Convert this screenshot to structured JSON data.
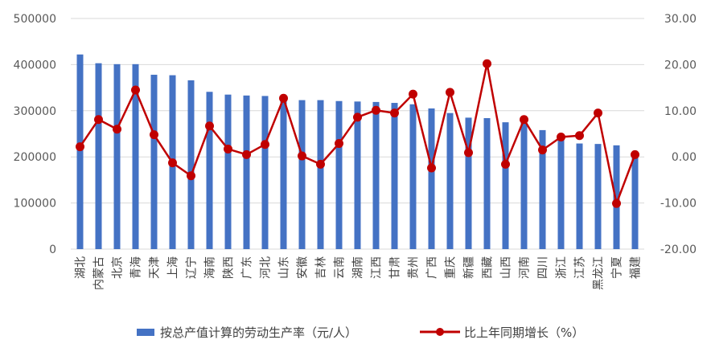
{
  "chart_data": {
    "type": "bar+line",
    "categories": [
      "湖北",
      "内蒙古",
      "北京",
      "青海",
      "天津",
      "上海",
      "辽宁",
      "海南",
      "陕西",
      "广东",
      "河北",
      "山东",
      "安徽",
      "吉林",
      "云南",
      "湖南",
      "江西",
      "甘肃",
      "贵州",
      "广西",
      "重庆",
      "新疆",
      "西藏",
      "山西",
      "河南",
      "四川",
      "浙江",
      "江苏",
      "黑龙江",
      "宁夏",
      "福建"
    ],
    "series": [
      {
        "name": "按总产值计算的劳动生产率（元/人）",
        "type": "bar",
        "axis": "left",
        "color": "#4472C4",
        "values": [
          422000,
          403000,
          401000,
          401000,
          378000,
          377000,
          366000,
          341000,
          335000,
          333000,
          332000,
          329000,
          323000,
          323000,
          321000,
          320000,
          319000,
          317000,
          314000,
          305000,
          295000,
          285000,
          284000,
          275000,
          275000,
          258000,
          245000,
          229000,
          228000,
          225000,
          204000
        ]
      },
      {
        "name": "比上年同期增长（%）",
        "type": "line",
        "axis": "right",
        "color": "#C00000",
        "values": [
          2.2,
          8.1,
          6.0,
          14.5,
          4.8,
          -1.3,
          -4.1,
          6.7,
          1.7,
          0.5,
          2.7,
          12.7,
          0.2,
          -1.6,
          2.9,
          8.6,
          10.1,
          9.5,
          13.6,
          -2.4,
          14.0,
          0.9,
          20.2,
          -1.6,
          8.1,
          1.5,
          4.3,
          4.6,
          9.5,
          -10.1,
          0.5
        ]
      }
    ],
    "y_left": {
      "min": 0,
      "max": 500000,
      "ticks": [
        "0",
        "100000",
        "200000",
        "300000",
        "400000",
        "500000"
      ]
    },
    "y_right": {
      "min": -20,
      "max": 30,
      "ticks": [
        "-20.00",
        "-10.00",
        "0.00",
        "10.00",
        "20.00",
        "30.00"
      ]
    },
    "grid": true,
    "legend_position": "bottom"
  }
}
